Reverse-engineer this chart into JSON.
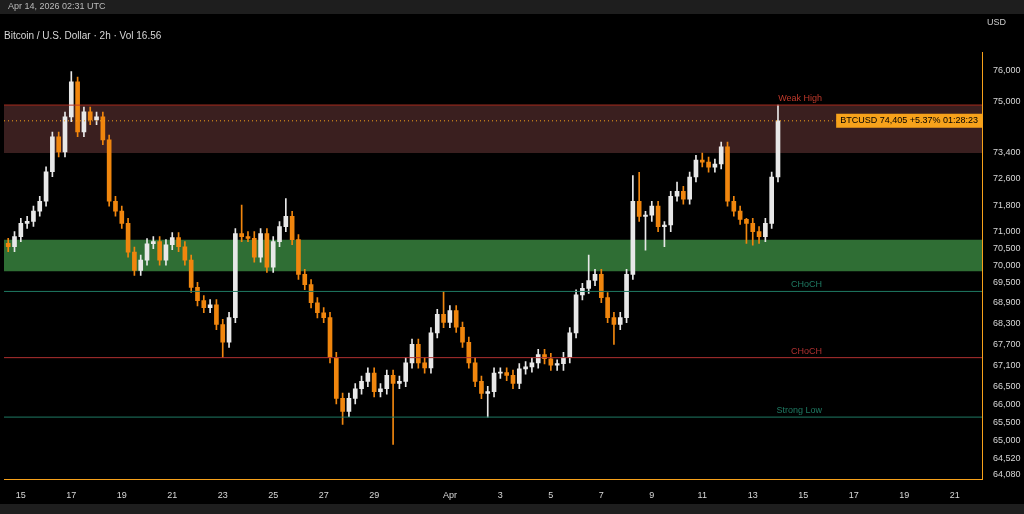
{
  "chart_data": {
    "type": "candlestick",
    "title": "Bitcoin / U.S. Dollar · 2h · Vol 16.56",
    "ylabel": "USD",
    "annotations": [
      "Apr 14, 2026 02:31 UTC"
    ],
    "colors": [
      "#f0860e",
      "#e8e8e8",
      "#e8e8e8",
      "#e8e8e8",
      "#e8e8e8",
      "#e8e8e8",
      "#e8e8e8",
      "#e8e8e8",
      "#f0860e",
      "#e8e8e8",
      "#e8e8e8",
      "#f0860e",
      "#e8e8e8",
      "#f0860e",
      "#e8e8e8",
      "#f0860e",
      "#f0860e",
      "#f0860e",
      "#f0860e",
      "#f0860e",
      "#f0860e",
      "#e8e8e8",
      "#e8e8e8",
      "#e8e8e8",
      "#f0860e",
      "#e8e8e8",
      "#e8e8e8",
      "#f0860e",
      "#f0860e",
      "#f0860e",
      "#f0860e",
      "#f0860e",
      "#e8e8e8",
      "#f0860e",
      "#f0860e",
      "#e8e8e8",
      "#e8e8e8",
      "#f0860e",
      "#f0860e",
      "#f0860e",
      "#e8e8e8",
      "#f0860e",
      "#e8e8e8",
      "#e8e8e8",
      "#e8e8e8",
      "#f0860e",
      "#f0860e",
      "#f0860e",
      "#f0860e",
      "#f0860e",
      "#f0860e",
      "#f0860e",
      "#f0860e",
      "#f0860e",
      "#e8e8e8",
      "#e8e8e8",
      "#e8e8e8",
      "#e8e8e8",
      "#f0860e",
      "#e8e8e8",
      "#e8e8e8",
      "#f0860e",
      "#e8e8e8",
      "#e8e8e8",
      "#e8e8e8",
      "#f0860e",
      "#f0860e",
      "#e8e8e8",
      "#e8e8e8",
      "#f0860e",
      "#e8e8e8",
      "#f0860e",
      "#f0860e",
      "#f0860e",
      "#f0860e",
      "#f0860e",
      "#e8e8e8",
      "#e8e8e8",
      "#e8e8e8",
      "#f0860e",
      "#f0860e",
      "#e8e8e8",
      "#e8e8e8",
      "#e8e8e8",
      "#e8e8e8",
      "#f0860e",
      "#f0860e",
      "#e8e8e8",
      "#e8e8e8",
      "#e8e8e8",
      "#e8e8e8",
      "#e8e8e8",
      "#e8e8e8",
      "#e8e8e8",
      "#f0860e",
      "#f0860e",
      "#f0860e",
      "#e8e8e8",
      "#e8e8e8",
      "#e8e8e8",
      "#f0860e",
      "#e8e8e8",
      "#e8e8e8",
      "#f0860e",
      "#e8e8e8",
      "#e8e8e8",
      "#e8e8e8",
      "#f0860e",
      "#e8e8e8",
      "#e8e8e8",
      "#f0860e",
      "#f0860e",
      "#e8e8e8",
      "#e8e8e8",
      "#f0860e",
      "#f0860e",
      "#f0860e",
      "#f0860e",
      "#f0860e",
      "#f0860e",
      "#e8e8e8",
      "#e8e8e8",
      "#e8e8e8"
    ],
    "x": [
      "2026-03-14T12:00",
      "2026-03-14T18:00",
      "2026-03-15T00:00",
      "2026-03-15T06:00",
      "2026-03-15T12:00",
      "2026-03-15T18:00",
      "2026-03-16T00:00",
      "2026-03-16T06:00",
      "2026-03-16T12:00",
      "2026-03-16T18:00",
      "2026-03-17T00:00",
      "2026-03-17T06:00",
      "2026-03-17T12:00",
      "2026-03-17T18:00",
      "2026-03-18T00:00",
      "2026-03-18T06:00",
      "2026-03-18T12:00",
      "2026-03-18T18:00",
      "2026-03-19T00:00",
      "2026-03-19T06:00",
      "2026-03-19T12:00",
      "2026-03-19T18:00",
      "2026-03-20T00:00",
      "2026-03-20T06:00",
      "2026-03-20T12:00",
      "2026-03-20T18:00",
      "2026-03-21T00:00",
      "2026-03-21T06:00",
      "2026-03-21T12:00",
      "2026-03-21T18:00",
      "2026-03-22T00:00",
      "2026-03-22T06:00",
      "2026-03-22T12:00",
      "2026-03-22T18:00",
      "2026-03-23T00:00",
      "2026-03-23T06:00",
      "2026-03-23T12:00",
      "2026-03-23T18:00",
      "2026-03-24T00:00",
      "2026-03-24T06:00",
      "2026-03-24T12:00",
      "2026-03-24T18:00",
      "2026-03-25T00:00",
      "2026-03-25T06:00",
      "2026-03-25T12:00",
      "2026-03-25T18:00",
      "2026-03-26T00:00",
      "2026-03-26T06:00",
      "2026-03-26T12:00",
      "2026-03-26T18:00",
      "2026-03-27T00:00",
      "2026-03-27T06:00",
      "2026-03-27T12:00",
      "2026-03-27T18:00",
      "2026-03-28T00:00",
      "2026-03-28T06:00",
      "2026-03-28T12:00",
      "2026-03-28T18:00",
      "2026-03-29T00:00",
      "2026-03-29T06:00",
      "2026-03-29T12:00",
      "2026-03-29T18:00",
      "2026-03-30T00:00",
      "2026-03-30T06:00",
      "2026-03-30T12:00",
      "2026-03-30T18:00",
      "2026-03-31T00:00",
      "2026-03-31T06:00",
      "2026-03-31T12:00",
      "2026-03-31T18:00",
      "2026-04-01T00:00",
      "2026-04-01T06:00",
      "2026-04-01T12:00",
      "2026-04-01T18:00",
      "2026-04-02T00:00",
      "2026-04-02T06:00",
      "2026-04-02T12:00",
      "2026-04-02T18:00",
      "2026-04-03T00:00",
      "2026-04-03T06:00",
      "2026-04-03T12:00",
      "2026-04-03T18:00",
      "2026-04-04T00:00",
      "2026-04-04T06:00",
      "2026-04-04T12:00",
      "2026-04-04T18:00",
      "2026-04-05T00:00",
      "2026-04-05T06:00",
      "2026-04-05T12:00",
      "2026-04-05T18:00",
      "2026-04-06T00:00",
      "2026-04-06T06:00",
      "2026-04-06T12:00",
      "2026-04-06T18:00",
      "2026-04-07T00:00",
      "2026-04-07T06:00",
      "2026-04-07T12:00",
      "2026-04-07T18:00",
      "2026-04-08T00:00",
      "2026-04-08T06:00",
      "2026-04-08T12:00",
      "2026-04-08T18:00",
      "2026-04-09T00:00",
      "2026-04-09T06:00",
      "2026-04-09T12:00",
      "2026-04-09T18:00",
      "2026-04-10T00:00",
      "2026-04-10T06:00",
      "2026-04-10T12:00",
      "2026-04-10T18:00",
      "2026-04-11T00:00",
      "2026-04-11T06:00",
      "2026-04-11T12:00",
      "2026-04-11T18:00",
      "2026-04-12T00:00",
      "2026-04-12T06:00",
      "2026-04-12T12:00",
      "2026-04-12T18:00",
      "2026-04-13T00:00",
      "2026-04-13T06:00",
      "2026-04-13T12:00",
      "2026-04-13T18:00",
      "2026-04-14T00:00"
    ],
    "ohlc": [
      [
        70650,
        70800,
        70400,
        70550
      ],
      [
        70550,
        71000,
        70400,
        70850
      ],
      [
        70850,
        71400,
        70700,
        71250
      ],
      [
        71250,
        71460,
        71100,
        71310
      ],
      [
        71310,
        71770,
        71160,
        71620
      ],
      [
        71620,
        72070,
        71470,
        71920
      ],
      [
        71920,
        72970,
        71770,
        72820
      ],
      [
        72820,
        74050,
        72670,
        73900
      ],
      [
        73900,
        74050,
        73280,
        73430
      ],
      [
        73430,
        74680,
        73280,
        74530
      ],
      [
        74530,
        75970,
        74380,
        75640
      ],
      [
        75640,
        75790,
        73910,
        74060
      ],
      [
        74060,
        74840,
        73910,
        74690
      ],
      [
        74690,
        74840,
        74280,
        74430
      ],
      [
        74430,
        74680,
        74280,
        74530
      ],
      [
        74530,
        74680,
        73660,
        73810
      ],
      [
        73810,
        73960,
        71770,
        71920
      ],
      [
        71920,
        72070,
        71470,
        71620
      ],
      [
        71620,
        71770,
        71100,
        71250
      ],
      [
        71250,
        71400,
        70240,
        70390
      ],
      [
        70390,
        70540,
        69700,
        69850
      ],
      [
        69850,
        70300,
        69700,
        70150
      ],
      [
        70150,
        70790,
        70000,
        70640
      ],
      [
        70640,
        70850,
        70490,
        70700
      ],
      [
        70700,
        70850,
        70000,
        70150
      ],
      [
        70150,
        70760,
        70000,
        70610
      ],
      [
        70610,
        70970,
        70460,
        70820
      ],
      [
        70820,
        70970,
        70400,
        70550
      ],
      [
        70550,
        70700,
        70000,
        70150
      ],
      [
        70150,
        70300,
        69200,
        69350
      ],
      [
        69350,
        69500,
        68810,
        68960
      ],
      [
        68960,
        69110,
        68610,
        68760
      ],
      [
        68760,
        68990,
        68610,
        68840
      ],
      [
        68840,
        68990,
        68120,
        68270
      ],
      [
        68270,
        68420,
        67320,
        67760
      ],
      [
        67760,
        68620,
        67610,
        68470
      ],
      [
        68470,
        71090,
        68320,
        70940
      ],
      [
        70940,
        71800,
        70700,
        70850
      ],
      [
        70850,
        71000,
        70700,
        70800
      ],
      [
        70800,
        71000,
        70090,
        70240
      ],
      [
        70240,
        71090,
        70090,
        70940
      ],
      [
        70940,
        71090,
        69790,
        69940
      ],
      [
        69940,
        70850,
        69790,
        70700
      ],
      [
        70700,
        71300,
        70550,
        71150
      ],
      [
        71150,
        72000,
        71000,
        71460
      ],
      [
        71460,
        71610,
        70610,
        70760
      ],
      [
        70760,
        70910,
        69580,
        69730
      ],
      [
        69730,
        69880,
        69280,
        69430
      ],
      [
        69430,
        69580,
        68750,
        68900
      ],
      [
        68900,
        69050,
        68460,
        68610
      ],
      [
        68610,
        68760,
        68320,
        68470
      ],
      [
        68470,
        68620,
        67170,
        67320
      ],
      [
        67320,
        67470,
        66020,
        66170
      ],
      [
        66170,
        66320,
        65450,
        65810
      ],
      [
        65810,
        66320,
        65660,
        66170
      ],
      [
        66170,
        66590,
        66020,
        66440
      ],
      [
        66440,
        66800,
        66290,
        66650
      ],
      [
        66650,
        67030,
        66500,
        66880
      ],
      [
        66880,
        67030,
        66210,
        66360
      ],
      [
        66360,
        66590,
        66210,
        66440
      ],
      [
        66440,
        66970,
        66290,
        66820
      ],
      [
        66820,
        66970,
        64900,
        66590
      ],
      [
        66590,
        66800,
        66440,
        66650
      ],
      [
        66650,
        67320,
        66500,
        67170
      ],
      [
        67170,
        67850,
        67020,
        67700
      ],
      [
        67700,
        67850,
        67020,
        67170
      ],
      [
        67170,
        67320,
        66880,
        67030
      ],
      [
        67030,
        68180,
        66880,
        68030
      ],
      [
        68030,
        68710,
        67880,
        68560
      ],
      [
        68560,
        69230,
        68180,
        68330
      ],
      [
        68330,
        68820,
        68180,
        68670
      ],
      [
        68670,
        68820,
        68040,
        68190
      ],
      [
        68190,
        68340,
        67610,
        67760
      ],
      [
        67760,
        67910,
        67020,
        67170
      ],
      [
        67170,
        67320,
        66500,
        66650
      ],
      [
        66650,
        66800,
        66160,
        66310
      ],
      [
        66310,
        66510,
        65650,
        66360
      ],
      [
        66360,
        67030,
        66210,
        66880
      ],
      [
        66880,
        67030,
        66730,
        66900
      ],
      [
        66900,
        67030,
        66670,
        66820
      ],
      [
        66820,
        66970,
        66440,
        66590
      ],
      [
        66590,
        67150,
        66440,
        67000
      ],
      [
        67000,
        67210,
        66850,
        67060
      ],
      [
        67060,
        67320,
        66910,
        67170
      ],
      [
        67170,
        67560,
        67020,
        67410
      ],
      [
        67410,
        67560,
        67140,
        67290
      ],
      [
        67290,
        67440,
        66960,
        67110
      ],
      [
        67110,
        67260,
        66960,
        67150
      ],
      [
        67150,
        67470,
        66960,
        67320
      ],
      [
        67320,
        68180,
        67170,
        68030
      ],
      [
        68030,
        69280,
        67880,
        69130
      ],
      [
        69130,
        69470,
        68980,
        69320
      ],
      [
        69320,
        70300,
        69170,
        69550
      ],
      [
        69550,
        69880,
        69400,
        69730
      ],
      [
        69730,
        69880,
        68900,
        69050
      ],
      [
        69050,
        69200,
        68320,
        68470
      ],
      [
        68470,
        68620,
        67700,
        68270
      ],
      [
        68270,
        68620,
        68120,
        68470
      ],
      [
        68470,
        69880,
        68320,
        69730
      ],
      [
        69730,
        72700,
        69580,
        71920
      ],
      [
        71920,
        72800,
        71310,
        71460
      ],
      [
        71460,
        71610,
        70450,
        71500
      ],
      [
        71500,
        71920,
        71310,
        71770
      ],
      [
        71770,
        71920,
        71000,
        71150
      ],
      [
        71150,
        71300,
        70550,
        71200
      ],
      [
        71200,
        72220,
        71000,
        72070
      ],
      [
        72070,
        72500,
        71920,
        72220
      ],
      [
        72220,
        72370,
        71830,
        71980
      ],
      [
        71980,
        72810,
        71830,
        72660
      ],
      [
        72660,
        73330,
        72510,
        73180
      ],
      [
        73180,
        73400,
        72970,
        73120
      ],
      [
        73120,
        73270,
        72810,
        72960
      ],
      [
        72960,
        73210,
        72810,
        73060
      ],
      [
        73060,
        73740,
        72910,
        73590
      ],
      [
        73590,
        73740,
        71770,
        71920
      ],
      [
        71920,
        72070,
        71470,
        71620
      ],
      [
        71620,
        71770,
        71220,
        71370
      ],
      [
        71370,
        71400,
        70650,
        71250
      ],
      [
        71250,
        71400,
        70600,
        71000
      ],
      [
        71000,
        71150,
        70650,
        70850
      ],
      [
        70850,
        71400,
        70700,
        71250
      ],
      [
        71250,
        72810,
        71100,
        72660
      ],
      [
        72660,
        74900,
        72510,
        74405
      ]
    ],
    "xlim": [
      "2026-03-14T08:00",
      "2026-04-22T02:00"
    ],
    "xticks": [
      {
        "value": "2026-03-15",
        "label": "15"
      },
      {
        "value": "2026-03-17",
        "label": "17"
      },
      {
        "value": "2026-03-19",
        "label": "19"
      },
      {
        "value": "2026-03-21",
        "label": "21"
      },
      {
        "value": "2026-03-23",
        "label": "23"
      },
      {
        "value": "2026-03-25",
        "label": "25"
      },
      {
        "value": "2026-03-27",
        "label": "27"
      },
      {
        "value": "2026-03-29",
        "label": "29"
      },
      {
        "value": "2026-04-01",
        "label": "Apr"
      },
      {
        "value": "2026-04-03",
        "label": "3"
      },
      {
        "value": "2026-04-05",
        "label": "5"
      },
      {
        "value": "2026-04-07",
        "label": "7"
      },
      {
        "value": "2026-04-09",
        "label": "9"
      },
      {
        "value": "2026-04-11",
        "label": "11"
      },
      {
        "value": "2026-04-13",
        "label": "13"
      },
      {
        "value": "2026-04-15",
        "label": "15"
      },
      {
        "value": "2026-04-17",
        "label": "17"
      },
      {
        "value": "2026-04-19",
        "label": "19"
      },
      {
        "value": "2026-04-21",
        "label": "21"
      }
    ],
    "log": true,
    "ylim": [
      63950,
      76600
    ],
    "yticks": [
      {
        "value": 64080,
        "label": "64,080"
      },
      {
        "value": 64520,
        "label": "64,520"
      },
      {
        "value": 65000,
        "label": "65,000"
      },
      {
        "value": 65500,
        "label": "65,500"
      },
      {
        "value": 66000,
        "label": "66,000"
      },
      {
        "value": 66500,
        "label": "66,500"
      },
      {
        "value": 67100,
        "label": "67,100"
      },
      {
        "value": 67700,
        "label": "67,700"
      },
      {
        "value": 68300,
        "label": "68,300"
      },
      {
        "value": 68900,
        "label": "68,900"
      },
      {
        "value": 69500,
        "label": "69,500"
      },
      {
        "value": 70000,
        "label": "70,000"
      },
      {
        "value": 70500,
        "label": "70,500"
      },
      {
        "value": 71000,
        "label": "71,000"
      },
      {
        "value": 71800,
        "label": "71,800"
      },
      {
        "value": 72600,
        "label": "72,600"
      },
      {
        "value": 73400,
        "label": "73,400"
      },
      {
        "value": 75000,
        "label": "75,000"
      },
      {
        "value": 76000,
        "label": "76,000"
      }
    ],
    "bands": [
      {
        "axis": "y",
        "from": 73400,
        "to": 74870,
        "color": "#3a1f1f"
      },
      {
        "axis": "y",
        "from": 69820,
        "to": 70760,
        "color": "#2f6e34"
      }
    ],
    "ref_lines": [
      {
        "axis": "y",
        "value": 74900,
        "label": "Weak High",
        "color": "#c0392b",
        "line_style": "solid"
      },
      {
        "axis": "y",
        "value": 67320,
        "label": "CHoCH",
        "color": "#b03030",
        "line_style": "solid"
      },
      {
        "axis": "y",
        "value": 69230,
        "label": "CHoCH",
        "color": "#1f7a63",
        "line_style": "solid"
      },
      {
        "axis": "y",
        "value": 65650,
        "label": "Strong Low",
        "color": "#1f7a63",
        "line_style": "solid"
      },
      {
        "axis": "y",
        "value": 74405,
        "label": "BTCUSD 74,405 +5.37% 01:28:23",
        "color": "#f7a21b",
        "line_style": "dotted"
      }
    ]
  }
}
